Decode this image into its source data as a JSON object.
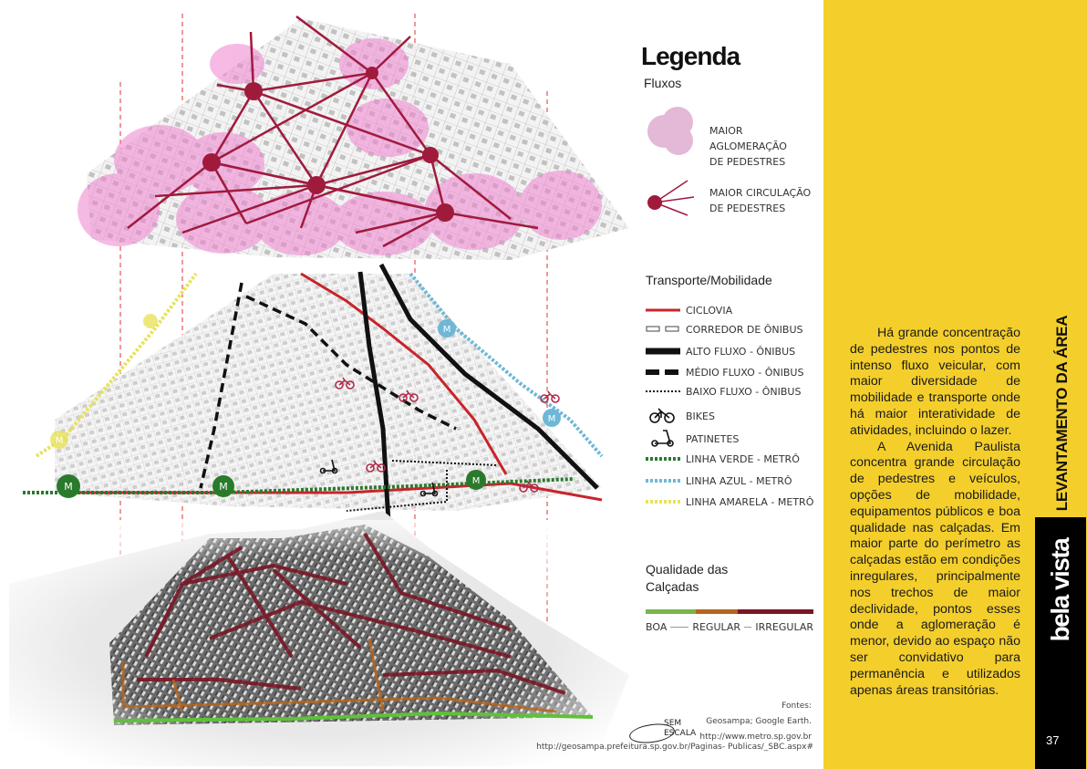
{
  "legend": {
    "title": "Legenda",
    "flux_title": "Fluxos",
    "flux_items": [
      {
        "label_line1": "MAIOR AGLOMERAÇÃO",
        "label_line2": "DE PEDESTRES",
        "icon": "pink-circles-icon"
      },
      {
        "label_line1": "MAIOR CIRCULAÇÃO",
        "label_line2": "DE PEDESTRES",
        "icon": "node-lines-icon"
      }
    ],
    "transport_title": "Transporte/Mobilidade",
    "transport_items": [
      {
        "label": "CICLOVIA",
        "icon": "red-line-icon"
      },
      {
        "label": "CORREDOR DE ÔNIBUS",
        "icon": "open-dash-icon"
      },
      {
        "label": "ALTO FLUXO - ÔNIBUS",
        "icon": "thick-line-icon"
      },
      {
        "label": "MÉDIO FLUXO - ÔNIBUS",
        "icon": "thick-dash-icon"
      },
      {
        "label": "BAIXO FLUXO - ÔNIBUS",
        "icon": "dotted-line-icon"
      },
      {
        "label": "BIKES",
        "icon": "bike-icon"
      },
      {
        "label": "PATINETES",
        "icon": "scooter-icon"
      },
      {
        "label": "LINHA VERDE - METRÔ",
        "icon": "green-metro-line-icon"
      },
      {
        "label": "LINHA AZUL - METRÔ",
        "icon": "blue-metro-line-icon"
      },
      {
        "label": "LINHA AMARELA - METRÔ",
        "icon": "yellow-metro-line-icon"
      }
    ],
    "quality_title_line1": "Qualidade das",
    "quality_title_line2": "Calçadas",
    "quality_labels": {
      "good": "BOA",
      "regular": "REGULAR",
      "irregular": "IRREGULAR"
    },
    "sources_title": "Fontes:",
    "sources": [
      "Geosampa; Google Earth.",
      "http://www.metro.sp.gov.br"
    ],
    "source_long": "http://geosampa.prefeitura.sp.gov.br/Paginas- Publicas/_SBC.aspx#",
    "scale_line1": "SEM",
    "scale_line2": "ESCALA"
  },
  "panel": {
    "paragraph1": "Há grande concentração de pedestres nos pontos de intenso fluxo veicular, com maior diversidade de mobilidade e transporte onde há maior interatividade de atividades, incluindo o lazer.",
    "paragraph2": "A Avenida Paulista concentra grande circulação de pedestres e veículos, opções de mobilidade, equipamentos públicos e boa qualidade nas calçadas. Em maior parte do perímetro as calçadas estão em condições inregulares, principalmente nos trechos de maior declividade, pontos esses onde a aglomeração é menor, devido ao espaço não ser convidativo para permanência e utilizados apenas áreas transitórias.",
    "vertical_title": "LEVANTAMENTO DA ÁREA",
    "brand": "bela vista",
    "page_number": "37"
  },
  "colors": {
    "panel_yellow": "#f4cf2c",
    "pink_crowd": "#ee82cf",
    "node_maroon": "#a01a3c",
    "ciclovia_red": "#c8242a",
    "metro_green": "#2a7a2c",
    "metro_blue": "#6fb7d6",
    "metro_yellow": "#e8e25a",
    "quality_good": "#7ab54a",
    "quality_regular": "#b5651d",
    "quality_irregular": "#7a1626"
  }
}
